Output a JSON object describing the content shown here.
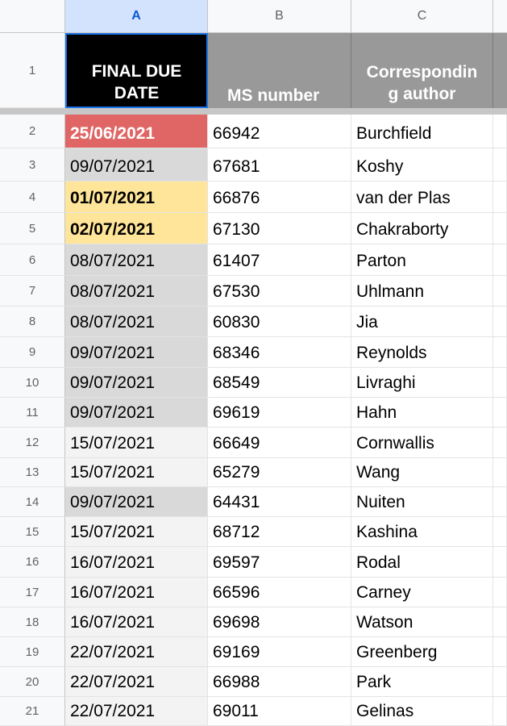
{
  "columns": {
    "a": "A",
    "b": "B",
    "c": "C"
  },
  "header": {
    "a_line1": "FINAL DUE",
    "a_line2": "DATE",
    "b": "MS number",
    "c_line1": "Correspondin",
    "c_line2": "g author",
    "row_number": "1"
  },
  "rows": [
    {
      "n": "2",
      "date": "25/06/2021",
      "ms": "66942",
      "author": "Burchfield",
      "style": "red"
    },
    {
      "n": "3",
      "date": "09/07/2021",
      "ms": "67681",
      "author": "Koshy",
      "style": "grey"
    },
    {
      "n": "4",
      "date": "01/07/2021",
      "ms": "66876",
      "author": "van der Plas",
      "style": "yellow"
    },
    {
      "n": "5",
      "date": "02/07/2021",
      "ms": "67130",
      "author": "Chakraborty",
      "style": "yellow"
    },
    {
      "n": "6",
      "date": "08/07/2021",
      "ms": "61407",
      "author": "Parton",
      "style": "grey"
    },
    {
      "n": "7",
      "date": "08/07/2021",
      "ms": "67530",
      "author": "Uhlmann",
      "style": "grey"
    },
    {
      "n": "8",
      "date": "08/07/2021",
      "ms": "60830",
      "author": "Jia",
      "style": "grey"
    },
    {
      "n": "9",
      "date": "09/07/2021",
      "ms": "68346",
      "author": "Reynolds",
      "style": "grey"
    },
    {
      "n": "10",
      "date": "09/07/2021",
      "ms": "68549",
      "author": "Livraghi",
      "style": "grey"
    },
    {
      "n": "11",
      "date": "09/07/2021",
      "ms": "69619",
      "author": "Hahn",
      "style": "grey"
    },
    {
      "n": "12",
      "date": "15/07/2021",
      "ms": "66649",
      "author": "Cornwallis",
      "style": "light"
    },
    {
      "n": "13",
      "date": "15/07/2021",
      "ms": "65279",
      "author": "Wang",
      "style": "light"
    },
    {
      "n": "14",
      "date": "09/07/2021",
      "ms": "64431",
      "author": "Nuiten",
      "style": "grey"
    },
    {
      "n": "15",
      "date": "15/07/2021",
      "ms": "68712",
      "author": "Kashina",
      "style": "light"
    },
    {
      "n": "16",
      "date": "16/07/2021",
      "ms": "69597",
      "author": "Rodal",
      "style": "light"
    },
    {
      "n": "17",
      "date": "16/07/2021",
      "ms": "66596",
      "author": "Carney",
      "style": "light"
    },
    {
      "n": "18",
      "date": "16/07/2021",
      "ms": "69698",
      "author": "Watson",
      "style": "light"
    },
    {
      "n": "19",
      "date": "22/07/2021",
      "ms": "69169",
      "author": "Greenberg",
      "style": "light"
    },
    {
      "n": "20",
      "date": "22/07/2021",
      "ms": "66988",
      "author": "Park",
      "style": "light"
    },
    {
      "n": "21",
      "date": "22/07/2021",
      "ms": "69011",
      "author": "Gelinas",
      "style": "light"
    }
  ],
  "colors": {
    "overdue_red": "#e06666",
    "soon_yellow": "#ffe599",
    "header_grey": "#999999",
    "selection_blue": "#1a73e8"
  }
}
